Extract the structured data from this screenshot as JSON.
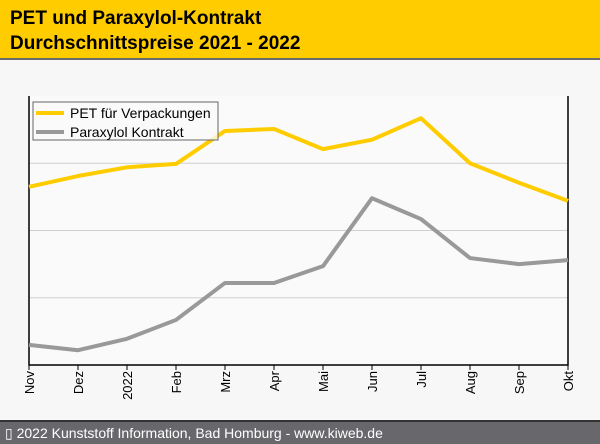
{
  "header": {
    "title_line1": "PET und Paraxylol-Kontrakt",
    "title_line2": "Durchschnittspreise 2021 - 2022"
  },
  "footer": {
    "text": "▯ 2022 Kunststoff Information, Bad Homburg - www.kiweb.de"
  },
  "chart_data": {
    "type": "line",
    "title": "PET und Paraxylol-Kontrakt Durchschnittspreise 2021 - 2022",
    "xlabel": "",
    "ylabel": "",
    "categories": [
      "Nov",
      "Dez",
      "2022",
      "Feb",
      "Mrz",
      "Apr",
      "Mai",
      "Jun",
      "Jul",
      "Aug",
      "Sep",
      "Okt"
    ],
    "ylim": [
      0,
      4
    ],
    "grid": true,
    "legend": "top-left",
    "series": [
      {
        "name": "PET für Verpackungen",
        "color": "#ffcc00",
        "values": [
          2.65,
          2.81,
          2.94,
          2.99,
          3.48,
          3.51,
          3.21,
          3.35,
          3.67,
          3.0,
          2.71,
          2.44
        ]
      },
      {
        "name": "Paraxylol Kontrakt",
        "color": "#999999",
        "values": [
          0.3,
          0.22,
          0.39,
          0.67,
          1.22,
          1.22,
          1.47,
          2.48,
          2.17,
          1.59,
          1.5,
          1.56
        ]
      }
    ]
  }
}
